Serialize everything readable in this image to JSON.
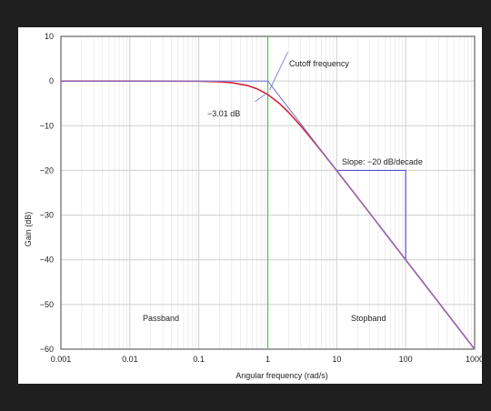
{
  "chart_data": {
    "type": "line",
    "title": "",
    "xlabel": "Angular frequency (rad/s)",
    "ylabel": "Gain (dB)",
    "x_scale": "log",
    "xlim": [
      0.001,
      1000
    ],
    "ylim": [
      -60,
      10
    ],
    "x_ticks": [
      0.001,
      0.01,
      0.1,
      1,
      10,
      100,
      1000
    ],
    "x_tick_labels": [
      "0.001",
      "0.01",
      "0.1",
      "1",
      "10",
      "100",
      "1000"
    ],
    "y_ticks": [
      10,
      0,
      -10,
      -20,
      -30,
      -40,
      -50,
      -60
    ],
    "y_tick_labels": [
      "10",
      "0",
      "−10",
      "−20",
      "−30",
      "−40",
      "−50",
      "−60"
    ],
    "grid": true,
    "cutoff_x": 1,
    "series": [
      {
        "role": "frequency-response",
        "color": "#d0263c",
        "x": [
          0.001,
          0.01,
          0.1,
          0.2,
          0.3,
          0.5,
          0.7,
          1,
          1.5,
          2,
          3,
          5,
          7,
          10,
          20,
          50,
          100,
          200,
          500,
          1000
        ],
        "y": [
          0,
          0,
          -0.04,
          -0.17,
          -0.37,
          -0.97,
          -1.74,
          -3.01,
          -5.12,
          -6.99,
          -10.0,
          -14.15,
          -17.0,
          -20.04,
          -26.02,
          -33.98,
          -40.0,
          -46.02,
          -53.98,
          -60.0
        ]
      },
      {
        "role": "asymptote",
        "color": "#7b7bd6",
        "x": [
          0.001,
          1,
          1000
        ],
        "y": [
          0,
          0,
          -60
        ]
      }
    ],
    "slope_marker": {
      "x": [
        10,
        100
      ],
      "y": [
        -20,
        -40
      ],
      "color": "#5555cc"
    },
    "annotations": {
      "cutoff": "Cutoff frequency",
      "minus3db": "−3.01 dB",
      "slope": "Slope: −20 dB/decade",
      "passband": "Passband",
      "stopband": "Stopband"
    },
    "colors": {
      "grid": "#cfcfcf",
      "axis": "#444444",
      "cutoff_line": "#3ccf3c"
    }
  }
}
